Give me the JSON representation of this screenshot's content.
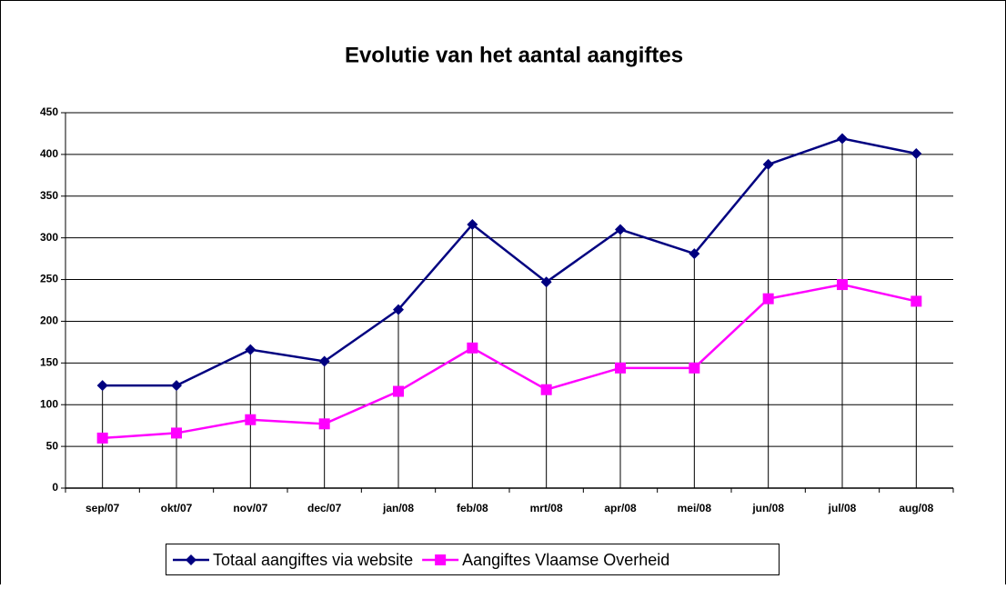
{
  "chart_data": {
    "type": "line",
    "title": "Evolutie van het aantal aangiftes",
    "categories": [
      "sep/07",
      "okt/07",
      "nov/07",
      "dec/07",
      "jan/08",
      "feb/08",
      "mrt/08",
      "apr/08",
      "mei/08",
      "jun/08",
      "jul/08",
      "aug/08"
    ],
    "series": [
      {
        "name": "Totaal aangiftes via website",
        "color": "#000080",
        "marker": "diamond",
        "values": [
          123,
          123,
          166,
          152,
          214,
          316,
          247,
          310,
          281,
          388,
          419,
          401
        ]
      },
      {
        "name": "Aangiftes Vlaamse Overheid",
        "color": "#ff00ff",
        "marker": "square",
        "values": [
          60,
          66,
          82,
          77,
          116,
          168,
          118,
          144,
          144,
          227,
          244,
          224
        ]
      }
    ],
    "ylim": [
      0,
      450
    ],
    "yticks": [
      0,
      50,
      100,
      150,
      200,
      250,
      300,
      350,
      400,
      450
    ],
    "grid": true,
    "drop_lines": true,
    "legend": "bottom"
  }
}
